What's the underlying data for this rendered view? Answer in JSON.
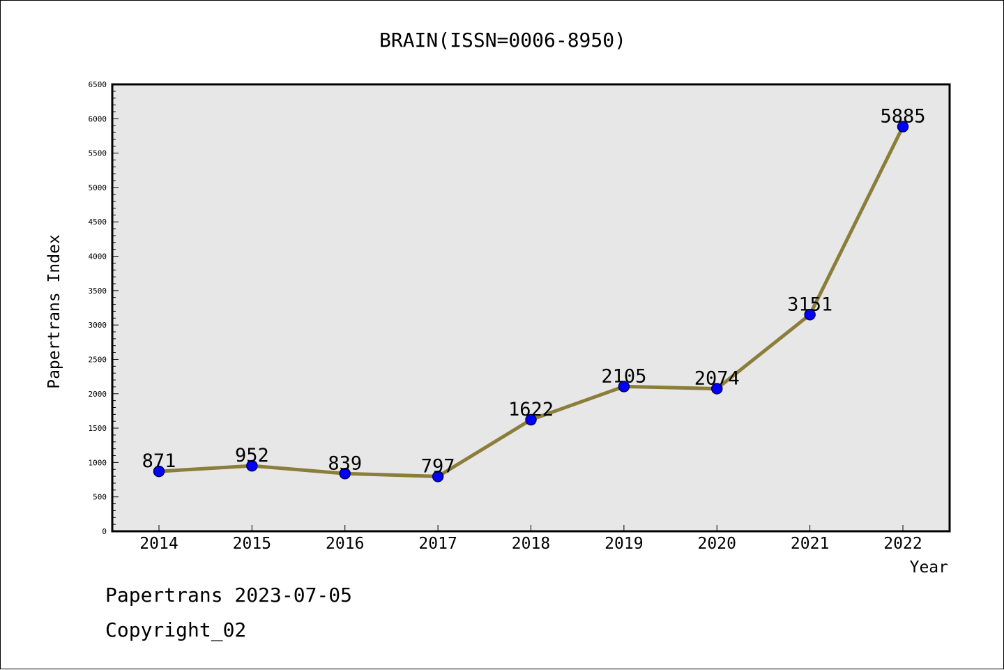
{
  "footer": {
    "line1": "Papertrans 2023-07-05",
    "line2": "Copyright_02"
  },
  "colors": {
    "plot_background": "#e7e7e7",
    "line": "#8b7d3a",
    "marker": "#0000ff",
    "marker_edge": "#00005a",
    "text": "#000000"
  },
  "chart_data": {
    "type": "line",
    "title": "BRAIN(ISSN=0006-8950)",
    "xlabel": "Year",
    "ylabel": "Papertrans Index",
    "categories": [
      "2014",
      "2015",
      "2016",
      "2017",
      "2018",
      "2019",
      "2020",
      "2021",
      "2022"
    ],
    "series": [
      {
        "values": [
          871,
          952,
          839,
          797,
          1622,
          2105,
          2074,
          3151,
          5885
        ],
        "data_labels": [
          "871",
          "952",
          "839",
          "797",
          "1622",
          "2105",
          "2074",
          "3151",
          "5885"
        ]
      }
    ],
    "ylim": [
      0,
      6500
    ],
    "y_ticks": [
      "0",
      "500",
      "1000",
      "1500",
      "2000",
      "2500",
      "3000",
      "3500",
      "4000",
      "4500",
      "5000",
      "5500",
      "6000",
      "6500"
    ],
    "grid": false,
    "legend": "none"
  }
}
